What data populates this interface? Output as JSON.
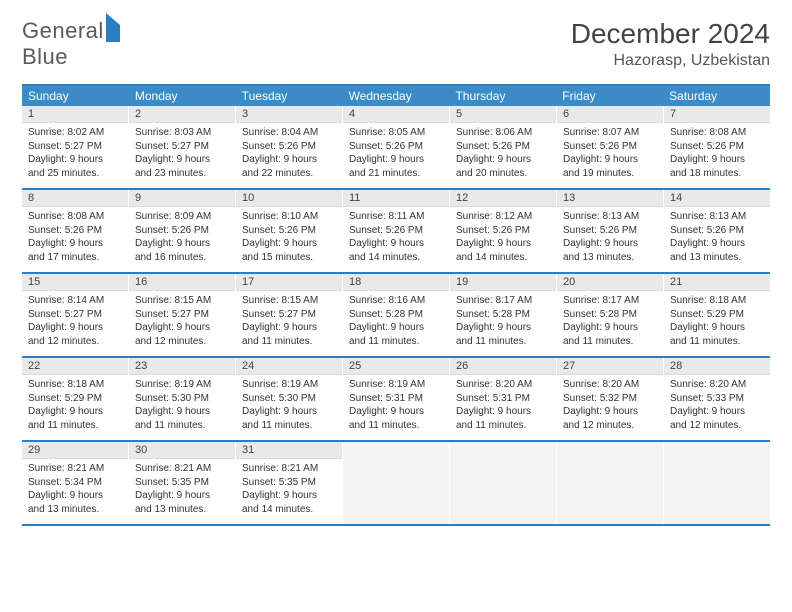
{
  "logo": {
    "first": "General",
    "second": "Blue"
  },
  "title": "December 2024",
  "location": "Hazorasp, Uzbekistan",
  "colors": {
    "header_bg": "#3a8cc9",
    "border": "#2a7ec4",
    "daynum_bg": "#e9e9e9",
    "text": "#333333"
  },
  "dow": [
    "Sunday",
    "Monday",
    "Tuesday",
    "Wednesday",
    "Thursday",
    "Friday",
    "Saturday"
  ],
  "weeks": [
    [
      {
        "n": "1",
        "sr": "8:02 AM",
        "ss": "5:27 PM",
        "dl": "9 hours and 25 minutes."
      },
      {
        "n": "2",
        "sr": "8:03 AM",
        "ss": "5:27 PM",
        "dl": "9 hours and 23 minutes."
      },
      {
        "n": "3",
        "sr": "8:04 AM",
        "ss": "5:26 PM",
        "dl": "9 hours and 22 minutes."
      },
      {
        "n": "4",
        "sr": "8:05 AM",
        "ss": "5:26 PM",
        "dl": "9 hours and 21 minutes."
      },
      {
        "n": "5",
        "sr": "8:06 AM",
        "ss": "5:26 PM",
        "dl": "9 hours and 20 minutes."
      },
      {
        "n": "6",
        "sr": "8:07 AM",
        "ss": "5:26 PM",
        "dl": "9 hours and 19 minutes."
      },
      {
        "n": "7",
        "sr": "8:08 AM",
        "ss": "5:26 PM",
        "dl": "9 hours and 18 minutes."
      }
    ],
    [
      {
        "n": "8",
        "sr": "8:08 AM",
        "ss": "5:26 PM",
        "dl": "9 hours and 17 minutes."
      },
      {
        "n": "9",
        "sr": "8:09 AM",
        "ss": "5:26 PM",
        "dl": "9 hours and 16 minutes."
      },
      {
        "n": "10",
        "sr": "8:10 AM",
        "ss": "5:26 PM",
        "dl": "9 hours and 15 minutes."
      },
      {
        "n": "11",
        "sr": "8:11 AM",
        "ss": "5:26 PM",
        "dl": "9 hours and 14 minutes."
      },
      {
        "n": "12",
        "sr": "8:12 AM",
        "ss": "5:26 PM",
        "dl": "9 hours and 14 minutes."
      },
      {
        "n": "13",
        "sr": "8:13 AM",
        "ss": "5:26 PM",
        "dl": "9 hours and 13 minutes."
      },
      {
        "n": "14",
        "sr": "8:13 AM",
        "ss": "5:26 PM",
        "dl": "9 hours and 13 minutes."
      }
    ],
    [
      {
        "n": "15",
        "sr": "8:14 AM",
        "ss": "5:27 PM",
        "dl": "9 hours and 12 minutes."
      },
      {
        "n": "16",
        "sr": "8:15 AM",
        "ss": "5:27 PM",
        "dl": "9 hours and 12 minutes."
      },
      {
        "n": "17",
        "sr": "8:15 AM",
        "ss": "5:27 PM",
        "dl": "9 hours and 11 minutes."
      },
      {
        "n": "18",
        "sr": "8:16 AM",
        "ss": "5:28 PM",
        "dl": "9 hours and 11 minutes."
      },
      {
        "n": "19",
        "sr": "8:17 AM",
        "ss": "5:28 PM",
        "dl": "9 hours and 11 minutes."
      },
      {
        "n": "20",
        "sr": "8:17 AM",
        "ss": "5:28 PM",
        "dl": "9 hours and 11 minutes."
      },
      {
        "n": "21",
        "sr": "8:18 AM",
        "ss": "5:29 PM",
        "dl": "9 hours and 11 minutes."
      }
    ],
    [
      {
        "n": "22",
        "sr": "8:18 AM",
        "ss": "5:29 PM",
        "dl": "9 hours and 11 minutes."
      },
      {
        "n": "23",
        "sr": "8:19 AM",
        "ss": "5:30 PM",
        "dl": "9 hours and 11 minutes."
      },
      {
        "n": "24",
        "sr": "8:19 AM",
        "ss": "5:30 PM",
        "dl": "9 hours and 11 minutes."
      },
      {
        "n": "25",
        "sr": "8:19 AM",
        "ss": "5:31 PM",
        "dl": "9 hours and 11 minutes."
      },
      {
        "n": "26",
        "sr": "8:20 AM",
        "ss": "5:31 PM",
        "dl": "9 hours and 11 minutes."
      },
      {
        "n": "27",
        "sr": "8:20 AM",
        "ss": "5:32 PM",
        "dl": "9 hours and 12 minutes."
      },
      {
        "n": "28",
        "sr": "8:20 AM",
        "ss": "5:33 PM",
        "dl": "9 hours and 12 minutes."
      }
    ],
    [
      {
        "n": "29",
        "sr": "8:21 AM",
        "ss": "5:34 PM",
        "dl": "9 hours and 13 minutes."
      },
      {
        "n": "30",
        "sr": "8:21 AM",
        "ss": "5:35 PM",
        "dl": "9 hours and 13 minutes."
      },
      {
        "n": "31",
        "sr": "8:21 AM",
        "ss": "5:35 PM",
        "dl": "9 hours and 14 minutes."
      },
      {
        "empty": true
      },
      {
        "empty": true
      },
      {
        "empty": true
      },
      {
        "empty": true
      }
    ]
  ],
  "labels": {
    "sunrise": "Sunrise: ",
    "sunset": "Sunset: ",
    "daylight": "Daylight: "
  }
}
